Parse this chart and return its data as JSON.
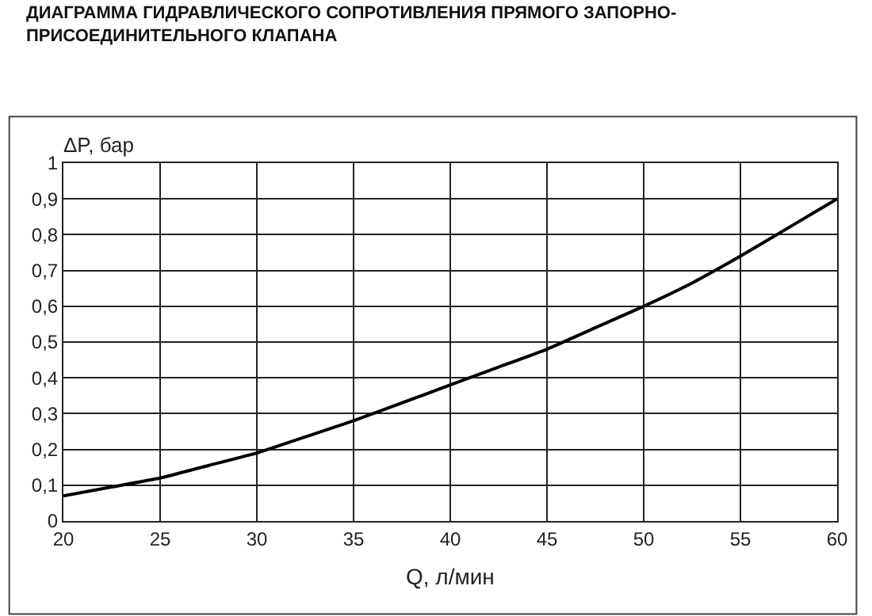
{
  "chart_data": {
    "type": "line",
    "title": "ДИАГРАММА ГИДРАВЛИЧЕСКОГО СОПРОТИВЛЕНИЯ ПРЯМОГО ЗАПОРНО-ПРИСОЕДИНИТЕЛЬНОГО КЛАПАНА",
    "xlabel": "Q, л/мин",
    "ylabel": "ΔP, бар",
    "series": [
      {
        "color": "#000000",
        "x": [
          20,
          22.5,
          25,
          27.5,
          30,
          32.5,
          35,
          37.5,
          40,
          42.5,
          45,
          47.5,
          50,
          52.5,
          55,
          57.5,
          60
        ],
        "values": [
          0.07,
          0.095,
          0.12,
          0.155,
          0.19,
          0.235,
          0.28,
          0.33,
          0.38,
          0.43,
          0.48,
          0.54,
          0.6,
          0.665,
          0.74,
          0.82,
          0.9
        ]
      }
    ],
    "xlim": [
      20,
      60
    ],
    "xticks": [
      20,
      25,
      30,
      35,
      40,
      45,
      50,
      55,
      60
    ],
    "ylim": [
      0,
      1
    ],
    "yticks": [
      0,
      {
        "value": 0.1,
        "label": "0,1"
      },
      {
        "value": 0.2,
        "label": "0,2"
      },
      {
        "value": 0.3,
        "label": "0,3"
      },
      {
        "value": 0.4,
        "label": "0,4"
      },
      {
        "value": 0.5,
        "label": "0,5"
      },
      {
        "value": 0.6,
        "label": "0,6"
      },
      {
        "value": 0.7,
        "label": "0,7"
      },
      {
        "value": 0.8,
        "label": "0,8"
      },
      {
        "value": 0.9,
        "label": "0,9"
      },
      1
    ],
    "grid": true,
    "marker": "none",
    "line_style": "solid"
  }
}
